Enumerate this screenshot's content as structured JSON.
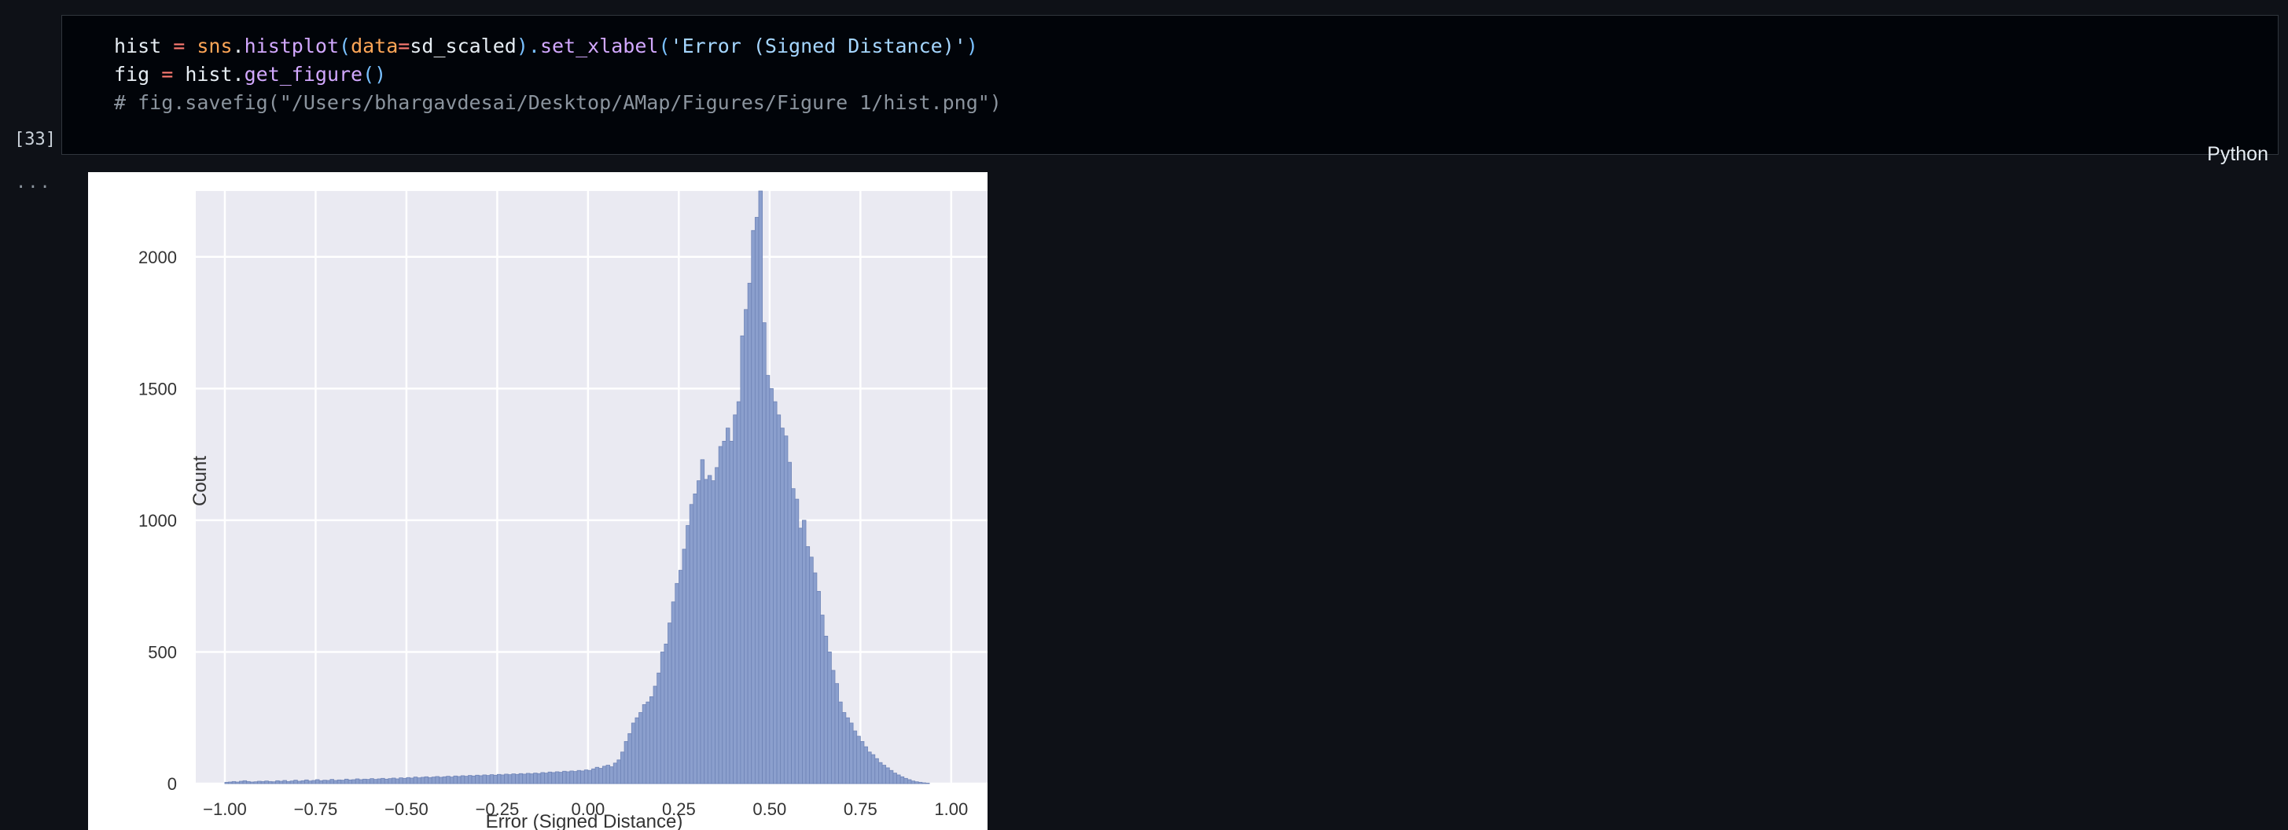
{
  "cell": {
    "execution_count": "[33]",
    "language": "Python",
    "output_marker": "...",
    "code": {
      "line1": {
        "t1": "hist",
        "t2": " = ",
        "t3": "sns",
        "t4": ".",
        "t5": "histplot",
        "t6": "(",
        "t7": "data",
        "t8": "=",
        "t9": "sd_scaled",
        "t10": ").",
        "t11": "set_xlabel",
        "t12": "(",
        "t13": "'Error (Signed Distance)'",
        "t14": ")"
      },
      "line2": {
        "t1": "fig",
        "t2": " = ",
        "t3": "hist",
        "t4": ".",
        "t5": "get_figure",
        "t6": "()"
      },
      "line3": "# fig.savefig(\"/Users/bhargavdesai/Desktop/AMap/Figures/Figure 1/hist.png\")"
    }
  },
  "chart_data": {
    "type": "bar",
    "xlabel": "Error (Signed Distance)",
    "ylabel": "Count",
    "xlim": [
      -1.08,
      1.1
    ],
    "ylim": [
      0,
      2250
    ],
    "grid": true,
    "xticks": [
      -1.0,
      -0.75,
      -0.5,
      -0.25,
      0.0,
      0.25,
      0.5,
      0.75,
      1.0
    ],
    "xtick_labels": [
      "−1.00",
      "−0.75",
      "−0.50",
      "−0.25",
      "0.00",
      "0.25",
      "0.50",
      "0.75",
      "1.00"
    ],
    "yticks": [
      0,
      500,
      1000,
      1500,
      2000
    ],
    "ytick_labels": [
      "0",
      "500",
      "1000",
      "1500",
      "2000"
    ],
    "colors": {
      "bar": "#8b9fcd",
      "edge": "#6f84b7",
      "plot_bg": "#eaeaf2",
      "grid": "#ffffff"
    },
    "bin_width": 0.01,
    "bins": [
      [
        -1.0,
        5
      ],
      [
        -0.99,
        6
      ],
      [
        -0.98,
        8
      ],
      [
        -0.97,
        6
      ],
      [
        -0.96,
        9
      ],
      [
        -0.95,
        11
      ],
      [
        -0.94,
        8
      ],
      [
        -0.93,
        6
      ],
      [
        -0.92,
        7
      ],
      [
        -0.91,
        9
      ],
      [
        -0.9,
        8
      ],
      [
        -0.89,
        10
      ],
      [
        -0.88,
        8
      ],
      [
        -0.87,
        7
      ],
      [
        -0.86,
        11
      ],
      [
        -0.85,
        9
      ],
      [
        -0.84,
        12
      ],
      [
        -0.83,
        8
      ],
      [
        -0.82,
        10
      ],
      [
        -0.81,
        13
      ],
      [
        -0.8,
        9
      ],
      [
        -0.79,
        11
      ],
      [
        -0.78,
        14
      ],
      [
        -0.77,
        10
      ],
      [
        -0.76,
        12
      ],
      [
        -0.75,
        15
      ],
      [
        -0.74,
        11
      ],
      [
        -0.73,
        13
      ],
      [
        -0.72,
        12
      ],
      [
        -0.71,
        16
      ],
      [
        -0.7,
        12
      ],
      [
        -0.69,
        14
      ],
      [
        -0.68,
        13
      ],
      [
        -0.67,
        17
      ],
      [
        -0.66,
        14
      ],
      [
        -0.65,
        15
      ],
      [
        -0.64,
        18
      ],
      [
        -0.63,
        15
      ],
      [
        -0.62,
        17
      ],
      [
        -0.61,
        16
      ],
      [
        -0.6,
        19
      ],
      [
        -0.59,
        16
      ],
      [
        -0.58,
        18
      ],
      [
        -0.57,
        20
      ],
      [
        -0.56,
        17
      ],
      [
        -0.55,
        19
      ],
      [
        -0.54,
        21
      ],
      [
        -0.53,
        18
      ],
      [
        -0.52,
        22
      ],
      [
        -0.51,
        20
      ],
      [
        -0.5,
        23
      ],
      [
        -0.49,
        21
      ],
      [
        -0.48,
        25
      ],
      [
        -0.47,
        22
      ],
      [
        -0.46,
        24
      ],
      [
        -0.45,
        26
      ],
      [
        -0.44,
        23
      ],
      [
        -0.43,
        25
      ],
      [
        -0.42,
        27
      ],
      [
        -0.41,
        24
      ],
      [
        -0.4,
        26
      ],
      [
        -0.39,
        28
      ],
      [
        -0.38,
        25
      ],
      [
        -0.37,
        29
      ],
      [
        -0.36,
        27
      ],
      [
        -0.35,
        30
      ],
      [
        -0.34,
        28
      ],
      [
        -0.33,
        31
      ],
      [
        -0.32,
        29
      ],
      [
        -0.31,
        32
      ],
      [
        -0.3,
        30
      ],
      [
        -0.29,
        33
      ],
      [
        -0.28,
        31
      ],
      [
        -0.27,
        34
      ],
      [
        -0.26,
        32
      ],
      [
        -0.25,
        35
      ],
      [
        -0.24,
        33
      ],
      [
        -0.23,
        36
      ],
      [
        -0.22,
        34
      ],
      [
        -0.21,
        37
      ],
      [
        -0.2,
        35
      ],
      [
        -0.19,
        38
      ],
      [
        -0.18,
        36
      ],
      [
        -0.17,
        39
      ],
      [
        -0.16,
        37
      ],
      [
        -0.15,
        40
      ],
      [
        -0.14,
        38
      ],
      [
        -0.13,
        42
      ],
      [
        -0.12,
        40
      ],
      [
        -0.11,
        44
      ],
      [
        -0.1,
        42
      ],
      [
        -0.09,
        45
      ],
      [
        -0.08,
        43
      ],
      [
        -0.07,
        47
      ],
      [
        -0.06,
        45
      ],
      [
        -0.05,
        48
      ],
      [
        -0.04,
        46
      ],
      [
        -0.03,
        50
      ],
      [
        -0.02,
        48
      ],
      [
        -0.01,
        52
      ],
      [
        0.0,
        50
      ],
      [
        0.01,
        56
      ],
      [
        0.02,
        62
      ],
      [
        0.03,
        58
      ],
      [
        0.04,
        66
      ],
      [
        0.05,
        70
      ],
      [
        0.06,
        64
      ],
      [
        0.07,
        78
      ],
      [
        0.08,
        90
      ],
      [
        0.09,
        120
      ],
      [
        0.1,
        160
      ],
      [
        0.11,
        190
      ],
      [
        0.12,
        230
      ],
      [
        0.13,
        250
      ],
      [
        0.14,
        270
      ],
      [
        0.15,
        300
      ],
      [
        0.16,
        310
      ],
      [
        0.17,
        330
      ],
      [
        0.18,
        370
      ],
      [
        0.19,
        420
      ],
      [
        0.2,
        500
      ],
      [
        0.21,
        530
      ],
      [
        0.22,
        610
      ],
      [
        0.23,
        690
      ],
      [
        0.24,
        760
      ],
      [
        0.25,
        810
      ],
      [
        0.26,
        890
      ],
      [
        0.27,
        980
      ],
      [
        0.28,
        1060
      ],
      [
        0.29,
        1100
      ],
      [
        0.3,
        1150
      ],
      [
        0.31,
        1230
      ],
      [
        0.32,
        1155
      ],
      [
        0.33,
        1170
      ],
      [
        0.34,
        1150
      ],
      [
        0.35,
        1200
      ],
      [
        0.36,
        1280
      ],
      [
        0.37,
        1300
      ],
      [
        0.38,
        1350
      ],
      [
        0.39,
        1300
      ],
      [
        0.4,
        1400
      ],
      [
        0.41,
        1450
      ],
      [
        0.42,
        1700
      ],
      [
        0.43,
        1800
      ],
      [
        0.44,
        1900
      ],
      [
        0.45,
        2100
      ],
      [
        0.46,
        2150
      ],
      [
        0.47,
        2250
      ],
      [
        0.48,
        1750
      ],
      [
        0.49,
        1550
      ],
      [
        0.5,
        1500
      ],
      [
        0.51,
        1450
      ],
      [
        0.52,
        1400
      ],
      [
        0.53,
        1350
      ],
      [
        0.54,
        1320
      ],
      [
        0.55,
        1220
      ],
      [
        0.56,
        1120
      ],
      [
        0.57,
        1080
      ],
      [
        0.58,
        970
      ],
      [
        0.59,
        1000
      ],
      [
        0.6,
        900
      ],
      [
        0.61,
        860
      ],
      [
        0.62,
        800
      ],
      [
        0.63,
        730
      ],
      [
        0.64,
        640
      ],
      [
        0.65,
        560
      ],
      [
        0.66,
        500
      ],
      [
        0.67,
        430
      ],
      [
        0.68,
        380
      ],
      [
        0.69,
        310
      ],
      [
        0.7,
        270
      ],
      [
        0.71,
        250
      ],
      [
        0.72,
        230
      ],
      [
        0.73,
        200
      ],
      [
        0.74,
        180
      ],
      [
        0.75,
        160
      ],
      [
        0.76,
        140
      ],
      [
        0.77,
        120
      ],
      [
        0.78,
        110
      ],
      [
        0.79,
        95
      ],
      [
        0.8,
        80
      ],
      [
        0.81,
        70
      ],
      [
        0.82,
        60
      ],
      [
        0.83,
        50
      ],
      [
        0.84,
        40
      ],
      [
        0.85,
        33
      ],
      [
        0.86,
        26
      ],
      [
        0.87,
        20
      ],
      [
        0.88,
        15
      ],
      [
        0.89,
        10
      ],
      [
        0.9,
        7
      ],
      [
        0.91,
        5
      ],
      [
        0.92,
        3
      ],
      [
        0.93,
        2
      ]
    ]
  }
}
